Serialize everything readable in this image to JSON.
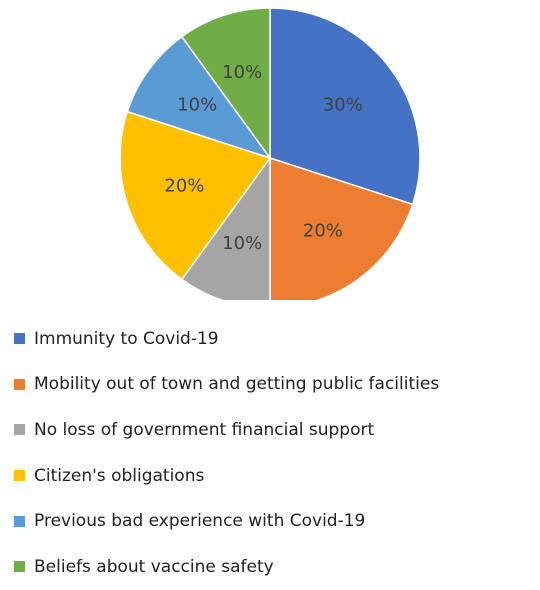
{
  "chart_data": {
    "type": "pie",
    "title": "",
    "slices": [
      {
        "label": "Immunity to Covid-19",
        "value": 30,
        "display": "30%",
        "color": "#4472C4"
      },
      {
        "label": "Mobility out of town and getting public facilities",
        "value": 20,
        "display": "20%",
        "color": "#ED7D31"
      },
      {
        "label": "No loss of government financial support",
        "value": 10,
        "display": "10%",
        "color": "#A5A5A5"
      },
      {
        "label": "Citizen's obligations",
        "value": 20,
        "display": "20%",
        "color": "#FFC000"
      },
      {
        "label": "Previous bad experience with Covid-19",
        "value": 10,
        "display": "10%",
        "color": "#5B9BD5"
      },
      {
        "label": "Beliefs about vaccine safety",
        "value": 10,
        "display": "10%",
        "color": "#70AD47"
      }
    ],
    "label_color": "#404040",
    "legend_position": "bottom"
  }
}
